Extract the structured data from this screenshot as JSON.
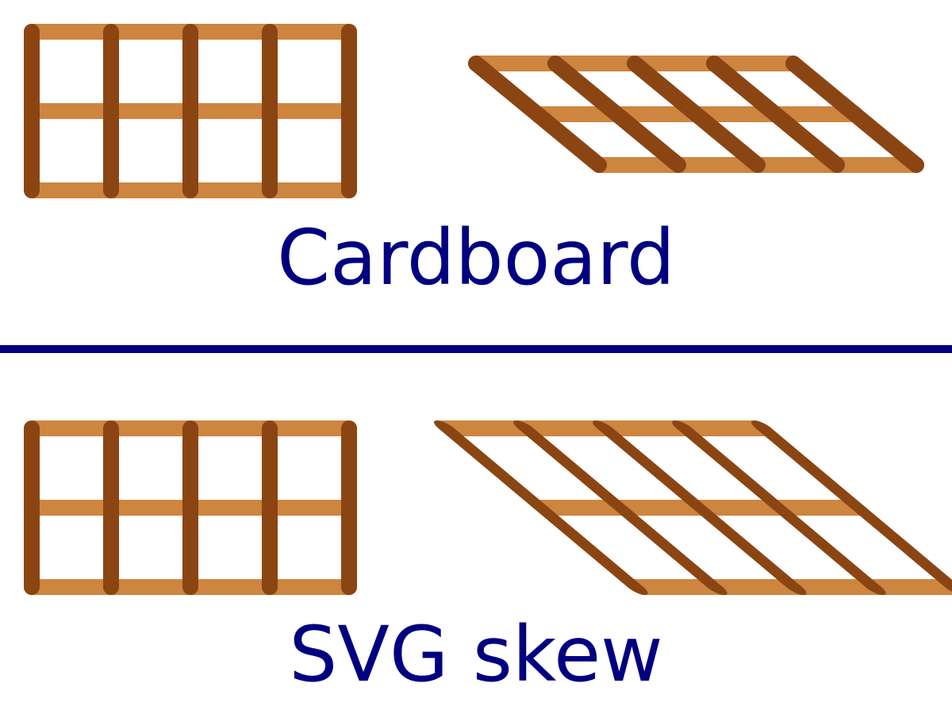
{
  "sections": [
    {
      "id": "cardboard",
      "caption": "Cardboard"
    },
    {
      "id": "svg-skew",
      "caption": "SVG skew"
    }
  ],
  "colors": {
    "rail": "#CD853F",
    "post": "#8B4513",
    "text": "#000080",
    "divider": "#000080",
    "background": "#FFFFFF"
  }
}
